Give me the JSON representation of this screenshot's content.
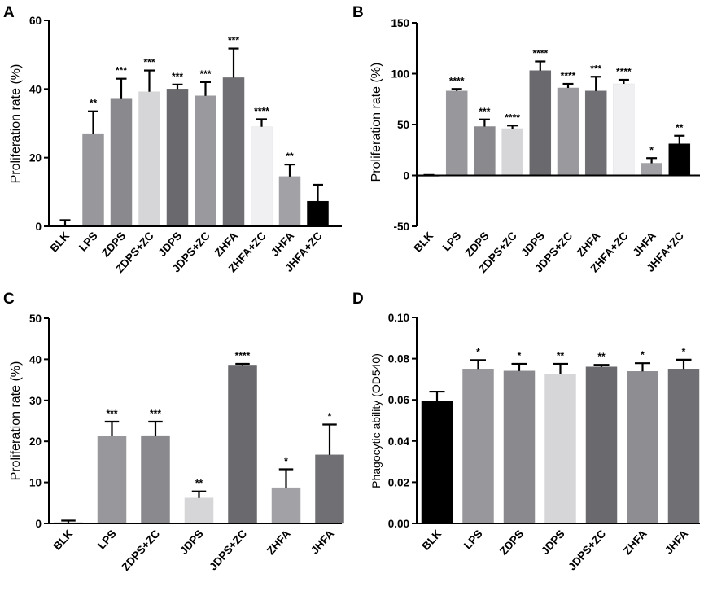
{
  "chart_data": [
    {
      "panel": "A",
      "type": "bar",
      "ylabel": "Proliferation rate  (%)",
      "ylim": [
        0,
        60
      ],
      "yticks": [
        0,
        20,
        40,
        60
      ],
      "categories": [
        "BLK",
        "LPS",
        "ZDPS",
        "ZDPS+ZC",
        "JDPS",
        "JDPS+ZC",
        "ZHFA",
        "ZHFA+ZC",
        "JHFA",
        "JHFA+ZC"
      ],
      "values": [
        0.3,
        27,
        37.3,
        39.2,
        40,
        38,
        43.3,
        29,
        14.5,
        7.3
      ],
      "errors": [
        1.5,
        6.5,
        5.7,
        6.2,
        1.3,
        4,
        8.5,
        2.2,
        3.5,
        4.8
      ],
      "significance": [
        "",
        "**",
        "***",
        "***",
        "***",
        "***",
        "***",
        "****",
        "**",
        ""
      ],
      "colors": [
        "#a8a8ac",
        "#98989c",
        "#8a8a8e",
        "#d6d6d8",
        "#6a6a6e",
        "#9a9a9e",
        "#707074",
        "#f0f0f2",
        "#a2a2a6",
        "#000000"
      ]
    },
    {
      "panel": "B",
      "type": "bar",
      "ylabel": "Proliferation rate  (%)",
      "ylim": [
        -50,
        150
      ],
      "yticks": [
        -50,
        0,
        50,
        100,
        150
      ],
      "categories": [
        "BLK",
        "LPS",
        "ZDPS",
        "ZDPS+ZC",
        "JDPS",
        "JDPS+ZC",
        "ZHFA",
        "ZHFA+ZC",
        "JHFA",
        "JHFA+ZC"
      ],
      "values": [
        0,
        83,
        48,
        46,
        103,
        86,
        83,
        90,
        12,
        31
      ],
      "errors": [
        0.5,
        2,
        7,
        3,
        9,
        4,
        14,
        4,
        5,
        8
      ],
      "significance": [
        "",
        "****",
        "***",
        "****",
        "****",
        "****",
        "***",
        "****",
        "*",
        "**"
      ],
      "colors": [
        "#a8a8ac",
        "#98989c",
        "#8a8a8e",
        "#d6d6d8",
        "#6a6a6e",
        "#9a9a9e",
        "#707074",
        "#f0f0f2",
        "#a2a2a6",
        "#000000"
      ]
    },
    {
      "panel": "C",
      "type": "bar",
      "ylabel": "Proliferation rate  (%)",
      "ylim": [
        0,
        50
      ],
      "yticks": [
        0,
        10,
        20,
        30,
        40,
        50
      ],
      "categories": [
        "BLK",
        "LPS",
        "ZDPS+ZC",
        "JDPS",
        "JDPS+ZC",
        "ZHFA",
        "JHFA"
      ],
      "values": [
        0.2,
        21.3,
        21.4,
        6.2,
        38.6,
        8.7,
        16.7
      ],
      "errors": [
        0.5,
        3.5,
        3.4,
        1.6,
        0.3,
        4.5,
        7.4
      ],
      "significance": [
        "",
        "***",
        "***",
        "**",
        "****",
        "*",
        "*"
      ],
      "colors": [
        "#a8a8ac",
        "#98989c",
        "#8a8a8e",
        "#d6d6d8",
        "#6a6a6e",
        "#a2a2a6",
        "#707074"
      ]
    },
    {
      "panel": "D",
      "type": "bar",
      "ylabel": "Phagocytic ability  (OD540)",
      "ylim": [
        0.0,
        0.1
      ],
      "yticks": [
        "0.00",
        "0.02",
        "0.04",
        "0.06",
        "0.08",
        "0.10"
      ],
      "categories": [
        "BLK",
        "LPS",
        "ZDPS",
        "JDPS",
        "JDPS+ZC",
        "ZHFA",
        "JHFA"
      ],
      "values": [
        0.0595,
        0.075,
        0.074,
        0.0725,
        0.076,
        0.0738,
        0.075
      ],
      "errors": [
        0.0045,
        0.0043,
        0.0035,
        0.005,
        0.001,
        0.004,
        0.0045
      ],
      "significance": [
        "",
        "*",
        "*",
        "**",
        "**",
        "*",
        "*"
      ],
      "colors": [
        "#000000",
        "#98989c",
        "#8a8a8e",
        "#d6d6d8",
        "#6a6a6e",
        "#8e8e92",
        "#707074"
      ]
    }
  ]
}
